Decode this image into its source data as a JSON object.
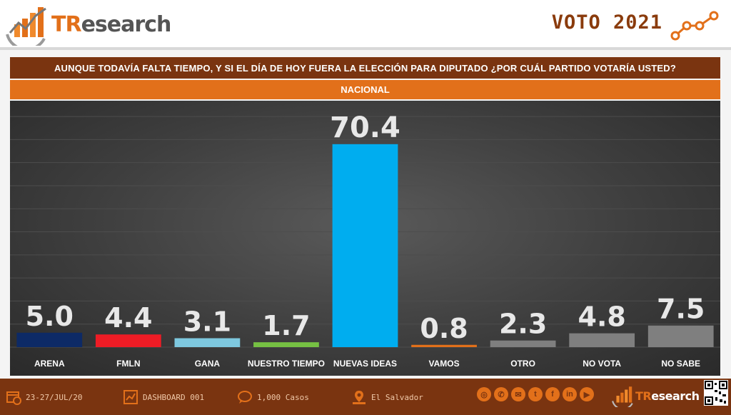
{
  "brand": {
    "name_accent": "TR",
    "name_rest": "esearch"
  },
  "header": {
    "title": "VOTO 2021"
  },
  "question": "AUNQUE TODAVÍA FALTA TIEMPO, Y SI EL DÍA DE HOY FUERA LA ELECCIÓN PARA DIPUTADO ¿POR CUÁL PARTIDO VOTARÍA USTED?",
  "scope": "NACIONAL",
  "chart_data": {
    "type": "bar",
    "categories": [
      "ARENA",
      "FMLN",
      "GANA",
      "NUESTRO TIEMPO",
      "NUEVAS IDEAS",
      "VAMOS",
      "OTRO",
      "NO VOTA",
      "NO SABE"
    ],
    "values": [
      5.0,
      4.4,
      3.1,
      1.7,
      70.4,
      0.8,
      2.3,
      4.8,
      7.5
    ],
    "value_labels": [
      "5.0",
      "4.4",
      "3.1",
      "1.7",
      "70.4",
      "0.8",
      "2.3",
      "4.8",
      "7.5"
    ],
    "colors": [
      "#0d2a66",
      "#ee1c25",
      "#7ec8df",
      "#76c043",
      "#00adef",
      "#e2701a",
      "#7f7f7f",
      "#7f7f7f",
      "#7f7f7f"
    ],
    "ylim": [
      0,
      82
    ],
    "grid": true,
    "xlabel": "",
    "ylabel": ""
  },
  "footer": {
    "date": "23-27/JUL/20",
    "dashboard": "DASHBOARD 001",
    "cases": "1,000 Casos",
    "location": "El Salvador",
    "socials": [
      {
        "icon": "globe-icon",
        "glyph": "◎"
      },
      {
        "icon": "phone-icon",
        "glyph": "✆"
      },
      {
        "icon": "email-icon",
        "glyph": "✉"
      },
      {
        "icon": "twitter-icon",
        "glyph": "t"
      },
      {
        "icon": "facebook-icon",
        "glyph": "f"
      },
      {
        "icon": "linkedin-icon",
        "glyph": "in"
      },
      {
        "icon": "youtube-icon",
        "glyph": "▶"
      }
    ]
  }
}
